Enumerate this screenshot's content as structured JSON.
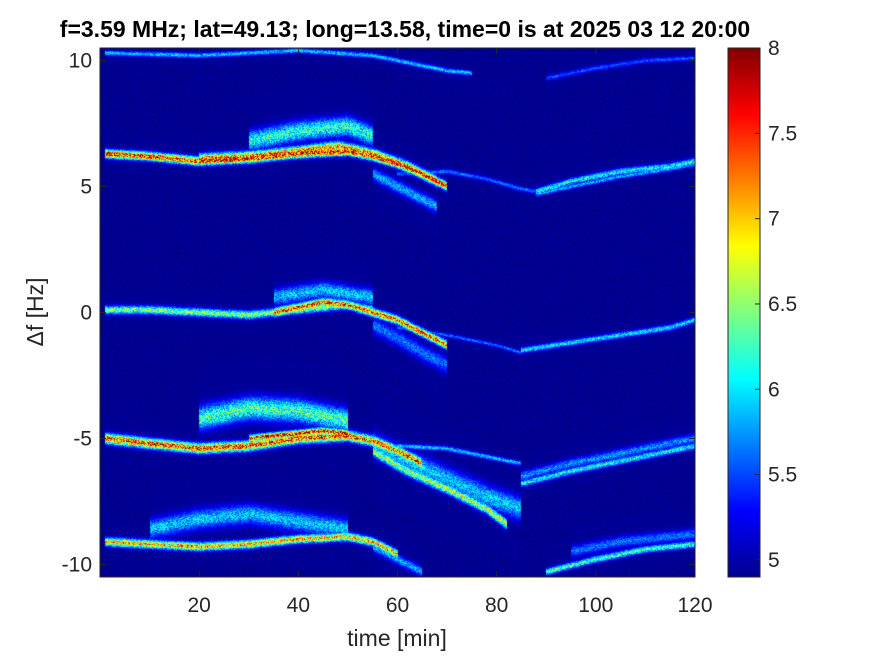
{
  "chart_data": {
    "type": "heatmap",
    "title": "f=3.59 MHz;  lat=49.13; long=13.58, time=0 is at 2025 03 12 20:00",
    "xlabel": "time [min]",
    "ylabel": "Δf [Hz]",
    "xlim": [
      0,
      120
    ],
    "ylim": [
      -10.5,
      10.5
    ],
    "x_ticks": [
      20,
      40,
      60,
      80,
      100,
      120
    ],
    "y_ticks": [
      10,
      5,
      0,
      -5,
      -10
    ],
    "colorbar": {
      "colormap": "jet",
      "range": [
        4.9,
        8
      ],
      "ticks": [
        5,
        5.5,
        6,
        6.5,
        7,
        7.5,
        8
      ]
    },
    "background_value": 4.95,
    "traces": [
      {
        "x": [
          1,
          10,
          20,
          30,
          40,
          50,
          55,
          60,
          65,
          70
        ],
        "y": [
          6.3,
          6.2,
          6.0,
          6.1,
          6.3,
          6.4,
          6.2,
          5.9,
          5.5,
          5.0
        ],
        "peak": 7.8,
        "spread": 0.25
      },
      {
        "x": [
          20,
          30,
          40,
          48,
          55,
          62,
          68
        ],
        "y": [
          6.1,
          6.2,
          6.4,
          6.6,
          6.3,
          5.8,
          5.2
        ],
        "peak": 7.4,
        "spread": 0.3
      },
      {
        "x": [
          30,
          40,
          50,
          55
        ],
        "y": [
          6.8,
          7.2,
          7.4,
          7.0
        ],
        "peak": 6.3,
        "spread": 0.6
      },
      {
        "x": [
          55,
          60,
          65,
          68
        ],
        "y": [
          5.5,
          5.0,
          4.5,
          4.2
        ],
        "peak": 5.9,
        "spread": 0.4
      },
      {
        "x": [
          88,
          95,
          105,
          115,
          120
        ],
        "y": [
          4.8,
          5.2,
          5.6,
          5.8,
          6.0
        ],
        "peak": 6.2,
        "spread": 0.2
      },
      {
        "x": [
          88,
          95,
          105,
          115,
          120
        ],
        "y": [
          4.7,
          5.0,
          5.4,
          5.7,
          5.9
        ],
        "peak": 5.9,
        "spread": 0.15
      },
      {
        "x": [
          60,
          70,
          78,
          85,
          88
        ],
        "y": [
          5.5,
          5.6,
          5.3,
          4.9,
          4.8
        ],
        "peak": 5.7,
        "spread": 0.15
      },
      {
        "x": [
          1,
          20,
          40,
          55,
          60,
          65,
          70,
          75
        ],
        "y": [
          10.3,
          10.2,
          10.4,
          10.2,
          10.0,
          9.8,
          9.6,
          9.5
        ],
        "peak": 6.0,
        "spread": 0.15
      },
      {
        "x": [
          90,
          100,
          110,
          120
        ],
        "y": [
          9.3,
          9.7,
          10.0,
          10.1
        ],
        "peak": 5.6,
        "spread": 0.15
      },
      {
        "x": [
          1,
          10,
          20,
          30,
          40,
          50,
          55
        ],
        "y": [
          0.1,
          0.1,
          0.0,
          -0.1,
          0.1,
          0.3,
          0.1
        ],
        "peak": 6.6,
        "spread": 0.25
      },
      {
        "x": [
          35,
          40,
          45,
          50,
          55,
          60,
          65,
          70
        ],
        "y": [
          0.0,
          0.2,
          0.4,
          0.3,
          0.0,
          -0.3,
          -0.8,
          -1.3
        ],
        "peak": 7.6,
        "spread": 0.25
      },
      {
        "x": [
          35,
          45,
          55
        ],
        "y": [
          0.6,
          0.9,
          0.6
        ],
        "peak": 6.0,
        "spread": 0.5
      },
      {
        "x": [
          55,
          60,
          65,
          70
        ],
        "y": [
          -0.5,
          -1.0,
          -1.6,
          -2.1
        ],
        "peak": 5.7,
        "spread": 0.5
      },
      {
        "x": [
          60,
          70,
          80,
          85
        ],
        "y": [
          -0.6,
          -0.9,
          -1.3,
          -1.6
        ],
        "peak": 5.7,
        "spread": 0.12
      },
      {
        "x": [
          85,
          95,
          105,
          115,
          120
        ],
        "y": [
          -1.5,
          -1.2,
          -0.9,
          -0.6,
          -0.3
        ],
        "peak": 6.1,
        "spread": 0.18
      },
      {
        "x": [
          1,
          10,
          20,
          30,
          40,
          50,
          55,
          60,
          65
        ],
        "y": [
          -5.0,
          -5.2,
          -5.4,
          -5.3,
          -5.0,
          -4.9,
          -5.1,
          -5.5,
          -6.0
        ],
        "peak": 7.6,
        "spread": 0.3
      },
      {
        "x": [
          30,
          35,
          40,
          45,
          50
        ],
        "y": [
          -5.0,
          -4.9,
          -4.8,
          -4.7,
          -4.8
        ],
        "peak": 7.9,
        "spread": 0.2
      },
      {
        "x": [
          20,
          30,
          40,
          50
        ],
        "y": [
          -4.2,
          -3.8,
          -3.9,
          -4.3
        ],
        "peak": 6.4,
        "spread": 0.7
      },
      {
        "x": [
          55,
          62,
          70,
          78,
          82
        ],
        "y": [
          -5.5,
          -6.3,
          -7.0,
          -7.8,
          -8.4
        ],
        "peak": 6.8,
        "spread": 0.3
      },
      {
        "x": [
          55,
          62,
          70,
          78,
          85
        ],
        "y": [
          -5.2,
          -5.9,
          -6.6,
          -7.3,
          -7.8
        ],
        "peak": 6.0,
        "spread": 0.7
      },
      {
        "x": [
          60,
          70,
          80,
          85
        ],
        "y": [
          -5.3,
          -5.4,
          -5.8,
          -6.0
        ],
        "peak": 6.0,
        "spread": 0.15
      },
      {
        "x": [
          85,
          95,
          105,
          115,
          120
        ],
        "y": [
          -6.8,
          -6.3,
          -5.9,
          -5.5,
          -5.3
        ],
        "peak": 6.2,
        "spread": 0.2
      },
      {
        "x": [
          85,
          95,
          105,
          115,
          120
        ],
        "y": [
          -6.5,
          -6.0,
          -5.6,
          -5.2,
          -5.0
        ],
        "peak": 5.8,
        "spread": 0.3
      },
      {
        "x": [
          1,
          10,
          20,
          30,
          40,
          50,
          55,
          60
        ],
        "y": [
          -9.1,
          -9.2,
          -9.3,
          -9.2,
          -9.0,
          -8.9,
          -9.1,
          -9.6
        ],
        "peak": 7.2,
        "spread": 0.25
      },
      {
        "x": [
          10,
          20,
          30,
          40,
          50
        ],
        "y": [
          -8.6,
          -8.2,
          -8.0,
          -8.3,
          -8.6
        ],
        "peak": 6.0,
        "spread": 0.6
      },
      {
        "x": [
          55,
          60,
          65
        ],
        "y": [
          -9.3,
          -9.8,
          -10.3
        ],
        "peak": 5.9,
        "spread": 0.3
      },
      {
        "x": [
          90,
          100,
          110,
          120
        ],
        "y": [
          -10.3,
          -9.8,
          -9.4,
          -9.2
        ],
        "peak": 6.4,
        "spread": 0.2
      },
      {
        "x": [
          95,
          105,
          115,
          120
        ],
        "y": [
          -9.5,
          -9.1,
          -8.9,
          -8.8
        ],
        "peak": 5.7,
        "spread": 0.35
      }
    ]
  }
}
